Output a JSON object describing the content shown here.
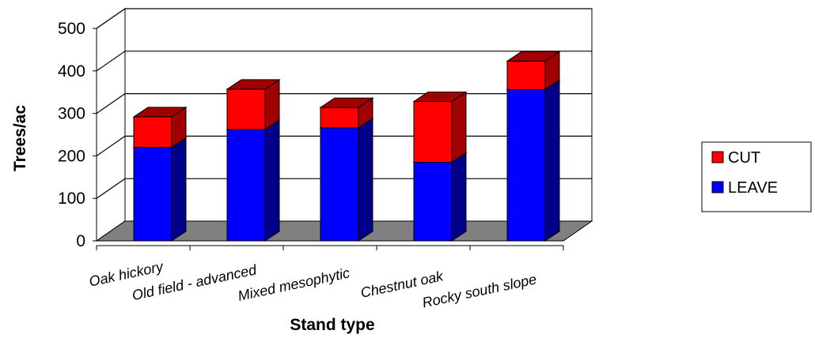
{
  "chart_data": {
    "type": "bar",
    "stacked": true,
    "style": "3d",
    "categories": [
      "Oak hickory",
      "Old field - advanced",
      "Mixed mesophytic",
      "Chestnut oak",
      "Rocky south slope"
    ],
    "series": [
      {
        "name": "LEAVE",
        "values": [
          220,
          262,
          266,
          185,
          356
        ],
        "color": "#0000ff",
        "side_color": "#00008b"
      },
      {
        "name": "CUT",
        "values": [
          72,
          95,
          48,
          143,
          67
        ],
        "color": "#ff0000",
        "side_color": "#a00000"
      }
    ],
    "xlabel": "Stand type",
    "ylabel": "Trees/ac",
    "ylim": [
      0,
      500
    ],
    "yticks": [
      0,
      100,
      200,
      300,
      400,
      500
    ],
    "grid": true,
    "legend_position": "right",
    "legend_order": [
      "CUT",
      "LEAVE"
    ],
    "floor_color": "#808080"
  }
}
